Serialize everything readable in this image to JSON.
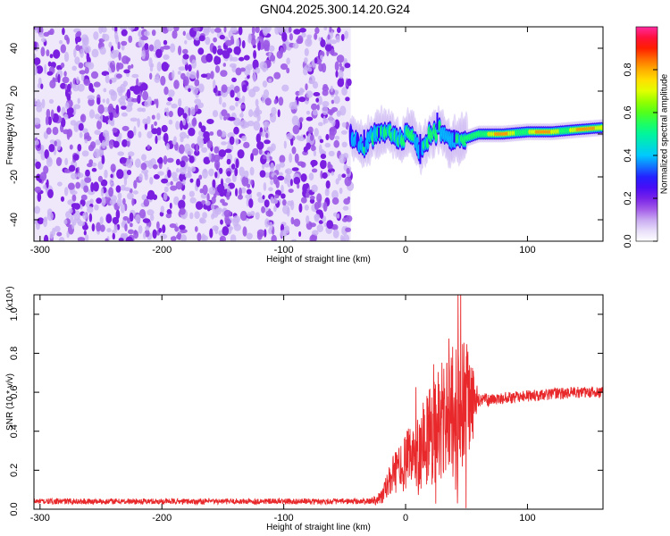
{
  "title": "GN04.2025.300.14.20.G24",
  "chart_data": [
    {
      "type": "heatmap",
      "title": "GN04.2025.300.14.20.G24",
      "xlabel": "Height of straight line (km)",
      "ylabel": "Frequency (Hz)",
      "xlim": [
        -305,
        162
      ],
      "ylim": [
        -50,
        50
      ],
      "xticks": [
        -300,
        -200,
        -100,
        0,
        100
      ],
      "xtick_labels": [
        "-300",
        "-200",
        "-100",
        "0",
        "100"
      ],
      "yticks": [
        -40,
        -20,
        0,
        20,
        40
      ],
      "ytick_labels": [
        "-40",
        "-20",
        "0",
        "20",
        "40"
      ],
      "colorbar": {
        "label": "Normalized spectral amplitude",
        "range": [
          0,
          1
        ],
        "ticks": [
          0,
          0.2,
          0.4,
          0.6,
          0.8
        ],
        "tick_labels": [
          "0.0",
          "0.2",
          "0.4",
          "0.6",
          "0.8"
        ]
      },
      "noise_region_x": [
        -305,
        -45
      ],
      "signal_track": {
        "x": [
          -45,
          -35,
          -25,
          -15,
          -5,
          5,
          12,
          20,
          28,
          36,
          45,
          60,
          80,
          100,
          120,
          140,
          162
        ],
        "frequency_hz": [
          -1,
          -6,
          0,
          2,
          -3,
          1,
          -8,
          -1,
          2,
          -4,
          -3,
          0,
          0,
          1,
          1,
          2,
          3
        ],
        "peak_amplitude": [
          0.4,
          0.45,
          0.5,
          0.55,
          0.6,
          0.6,
          0.5,
          0.6,
          0.55,
          0.5,
          0.55,
          0.8,
          0.85,
          0.85,
          0.85,
          0.9,
          0.9
        ]
      }
    },
    {
      "type": "line",
      "xlabel": "Height of straight line (km)",
      "ylabel": "SNR (10 * v/v)",
      "y_multiplier": "(x10⁴)",
      "xlim": [
        -305,
        162
      ],
      "ylim": [
        0,
        1.1
      ],
      "xticks": [
        -300,
        -200,
        -100,
        0,
        100
      ],
      "xtick_labels": [
        "-300",
        "-200",
        "-100",
        "0",
        "100"
      ],
      "yticks": [
        0,
        0.2,
        0.4,
        0.6,
        0.8,
        1.0
      ],
      "ytick_labels": [
        "0.0",
        "0.2",
        "0.4",
        "0.6",
        "0.8",
        "1.0"
      ],
      "color": "#e8282a",
      "series": [
        {
          "x": [
            -305,
            -200,
            -100,
            -30,
            -20,
            -10,
            0,
            10,
            20,
            30,
            40,
            50,
            60,
            70,
            80,
            100,
            120,
            140,
            162
          ],
          "mean": [
            0.04,
            0.04,
            0.04,
            0.04,
            0.06,
            0.18,
            0.24,
            0.3,
            0.38,
            0.45,
            0.5,
            0.52,
            0.56,
            0.56,
            0.57,
            0.58,
            0.59,
            0.6,
            0.6
          ],
          "spread": [
            0.015,
            0.015,
            0.015,
            0.015,
            0.04,
            0.1,
            0.15,
            0.2,
            0.28,
            0.32,
            0.35,
            0.35,
            0.04,
            0.03,
            0.03,
            0.03,
            0.03,
            0.03,
            0.03
          ]
        }
      ]
    }
  ]
}
